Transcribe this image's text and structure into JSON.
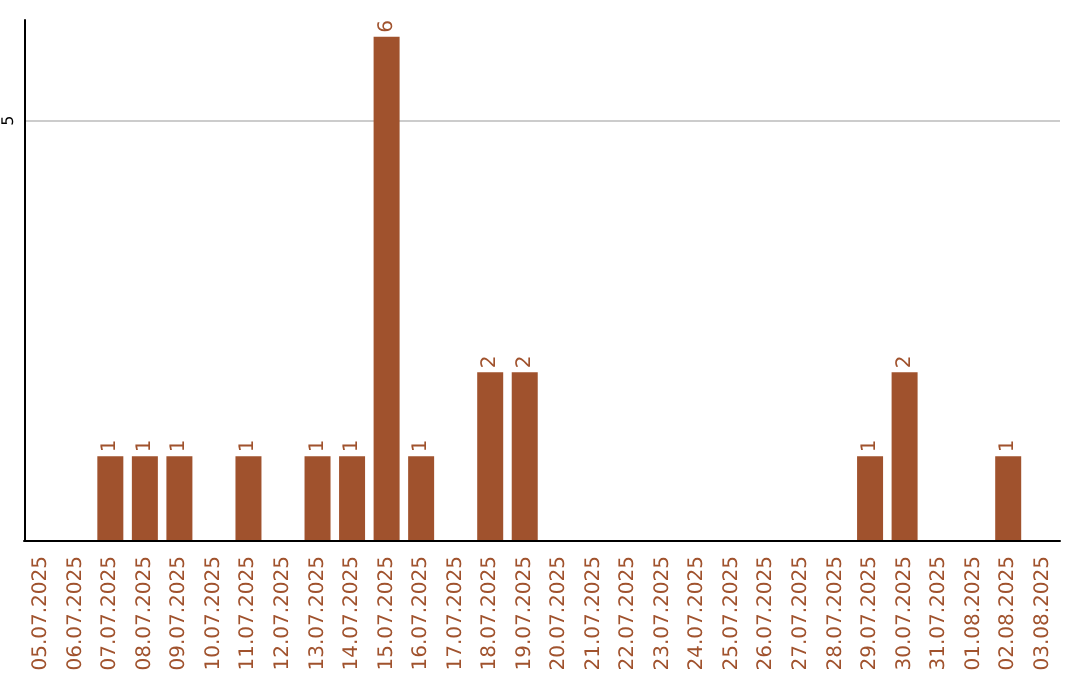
{
  "chart_data": {
    "type": "bar",
    "categories": [
      "05.07.2025",
      "06.07.2025",
      "07.07.2025",
      "08.07.2025",
      "09.07.2025",
      "10.07.2025",
      "11.07.2025",
      "12.07.2025",
      "13.07.2025",
      "14.07.2025",
      "15.07.2025",
      "16.07.2025",
      "17.07.2025",
      "18.07.2025",
      "19.07.2025",
      "20.07.2025",
      "21.07.2025",
      "22.07.2025",
      "23.07.2025",
      "24.07.2025",
      "25.07.2025",
      "26.07.2025",
      "27.07.2025",
      "28.07.2025",
      "29.07.2025",
      "30.07.2025",
      "31.07.2025",
      "01.08.2025",
      "02.08.2025",
      "03.08.2025"
    ],
    "values": [
      0,
      0,
      1,
      1,
      1,
      0,
      1,
      0,
      1,
      1,
      6,
      1,
      0,
      2,
      2,
      0,
      0,
      0,
      0,
      0,
      0,
      0,
      0,
      0,
      1,
      2,
      0,
      0,
      1,
      0
    ],
    "value_labels": [
      null,
      null,
      "1",
      "1",
      "1",
      null,
      "1",
      null,
      "1",
      "1",
      "6",
      "1",
      null,
      "2",
      "2",
      null,
      null,
      null,
      null,
      null,
      null,
      null,
      null,
      null,
      "1",
      "2",
      null,
      null,
      "1",
      null
    ],
    "color": "#a0522d",
    "ylim": [
      0,
      6.2
    ],
    "yticks": [
      5
    ],
    "grid": "y"
  }
}
